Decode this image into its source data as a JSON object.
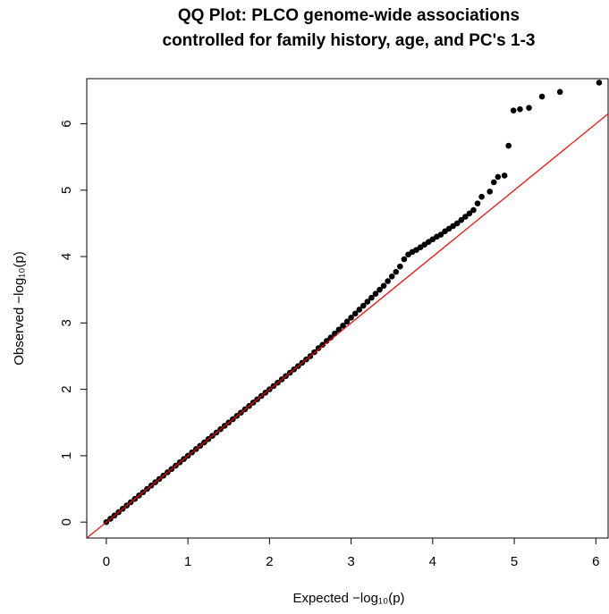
{
  "chart_data": {
    "type": "scatter",
    "title": [
      "QQ Plot: PLCO genome-wide associations",
      "controlled for family history, age, and PC's 1-3"
    ],
    "x_label": "Expected  −log₁₀(p)",
    "y_label": "Observed  −log₁₀(p)",
    "xlim": [
      -0.24,
      6.15
    ],
    "ylim": [
      -0.24,
      6.68
    ],
    "xticks": [
      0,
      1,
      2,
      3,
      4,
      5,
      6
    ],
    "yticks": [
      0,
      1,
      2,
      3,
      4,
      5,
      6
    ],
    "grid": false,
    "color": "#000000",
    "reference_line": {
      "intercept": 0,
      "slope": 1,
      "color": "#ff0000"
    },
    "x": [
      0,
      0.05,
      0.1,
      0.15,
      0.2,
      0.25,
      0.3,
      0.35,
      0.4,
      0.45,
      0.5,
      0.55,
      0.6,
      0.65,
      0.7,
      0.75,
      0.8,
      0.85,
      0.9,
      0.95,
      1,
      1.05,
      1.1,
      1.15,
      1.2,
      1.25,
      1.3,
      1.35,
      1.4,
      1.45,
      1.5,
      1.55,
      1.6,
      1.65,
      1.7,
      1.75,
      1.8,
      1.85,
      1.9,
      1.95,
      2,
      2.05,
      2.1,
      2.15,
      2.2,
      2.25,
      2.3,
      2.35,
      2.4,
      2.45,
      2.5,
      2.55,
      2.6,
      2.65,
      2.7,
      2.75,
      2.8,
      2.85,
      2.9,
      2.95,
      3,
      3.05,
      3.1,
      3.15,
      3.2,
      3.25,
      3.3,
      3.35,
      3.4,
      3.45,
      3.5,
      3.55,
      3.6,
      3.65,
      3.7,
      3.75,
      3.8,
      3.85,
      3.9,
      3.95,
      4,
      4.05,
      4.1,
      4.15,
      4.2,
      4.25,
      4.3,
      4.35,
      4.4,
      4.45,
      4.5,
      4.55,
      4.6,
      4.7,
      4.75,
      4.8,
      4.88,
      4.93,
      4.99,
      5.07,
      5.18,
      5.34,
      5.56,
      6.04
    ],
    "values": [
      0,
      0.05,
      0.1,
      0.15,
      0.2,
      0.25,
      0.3,
      0.35,
      0.4,
      0.45,
      0.5,
      0.55,
      0.6,
      0.65,
      0.7,
      0.75,
      0.8,
      0.85,
      0.9,
      0.95,
      1,
      1.05,
      1.1,
      1.15,
      1.2,
      1.25,
      1.3,
      1.35,
      1.4,
      1.45,
      1.5,
      1.55,
      1.6,
      1.65,
      1.7,
      1.75,
      1.8,
      1.85,
      1.9,
      1.95,
      2,
      2.05,
      2.1,
      2.15,
      2.2,
      2.25,
      2.3,
      2.35,
      2.4,
      2.45,
      2.5,
      2.56,
      2.62,
      2.67,
      2.73,
      2.78,
      2.84,
      2.9,
      2.96,
      3.02,
      3.08,
      3.14,
      3.2,
      3.26,
      3.32,
      3.38,
      3.44,
      3.5,
      3.56,
      3.63,
      3.7,
      3.77,
      3.85,
      3.96,
      4.03,
      4.07,
      4.1,
      4.14,
      4.18,
      4.22,
      4.26,
      4.3,
      4.33,
      4.38,
      4.42,
      4.46,
      4.5,
      4.55,
      4.6,
      4.65,
      4.7,
      4.8,
      4.9,
      4.98,
      5.12,
      5.2,
      5.22,
      5.67,
      6.2,
      6.22,
      6.24,
      6.41,
      6.48,
      6.62
    ]
  }
}
